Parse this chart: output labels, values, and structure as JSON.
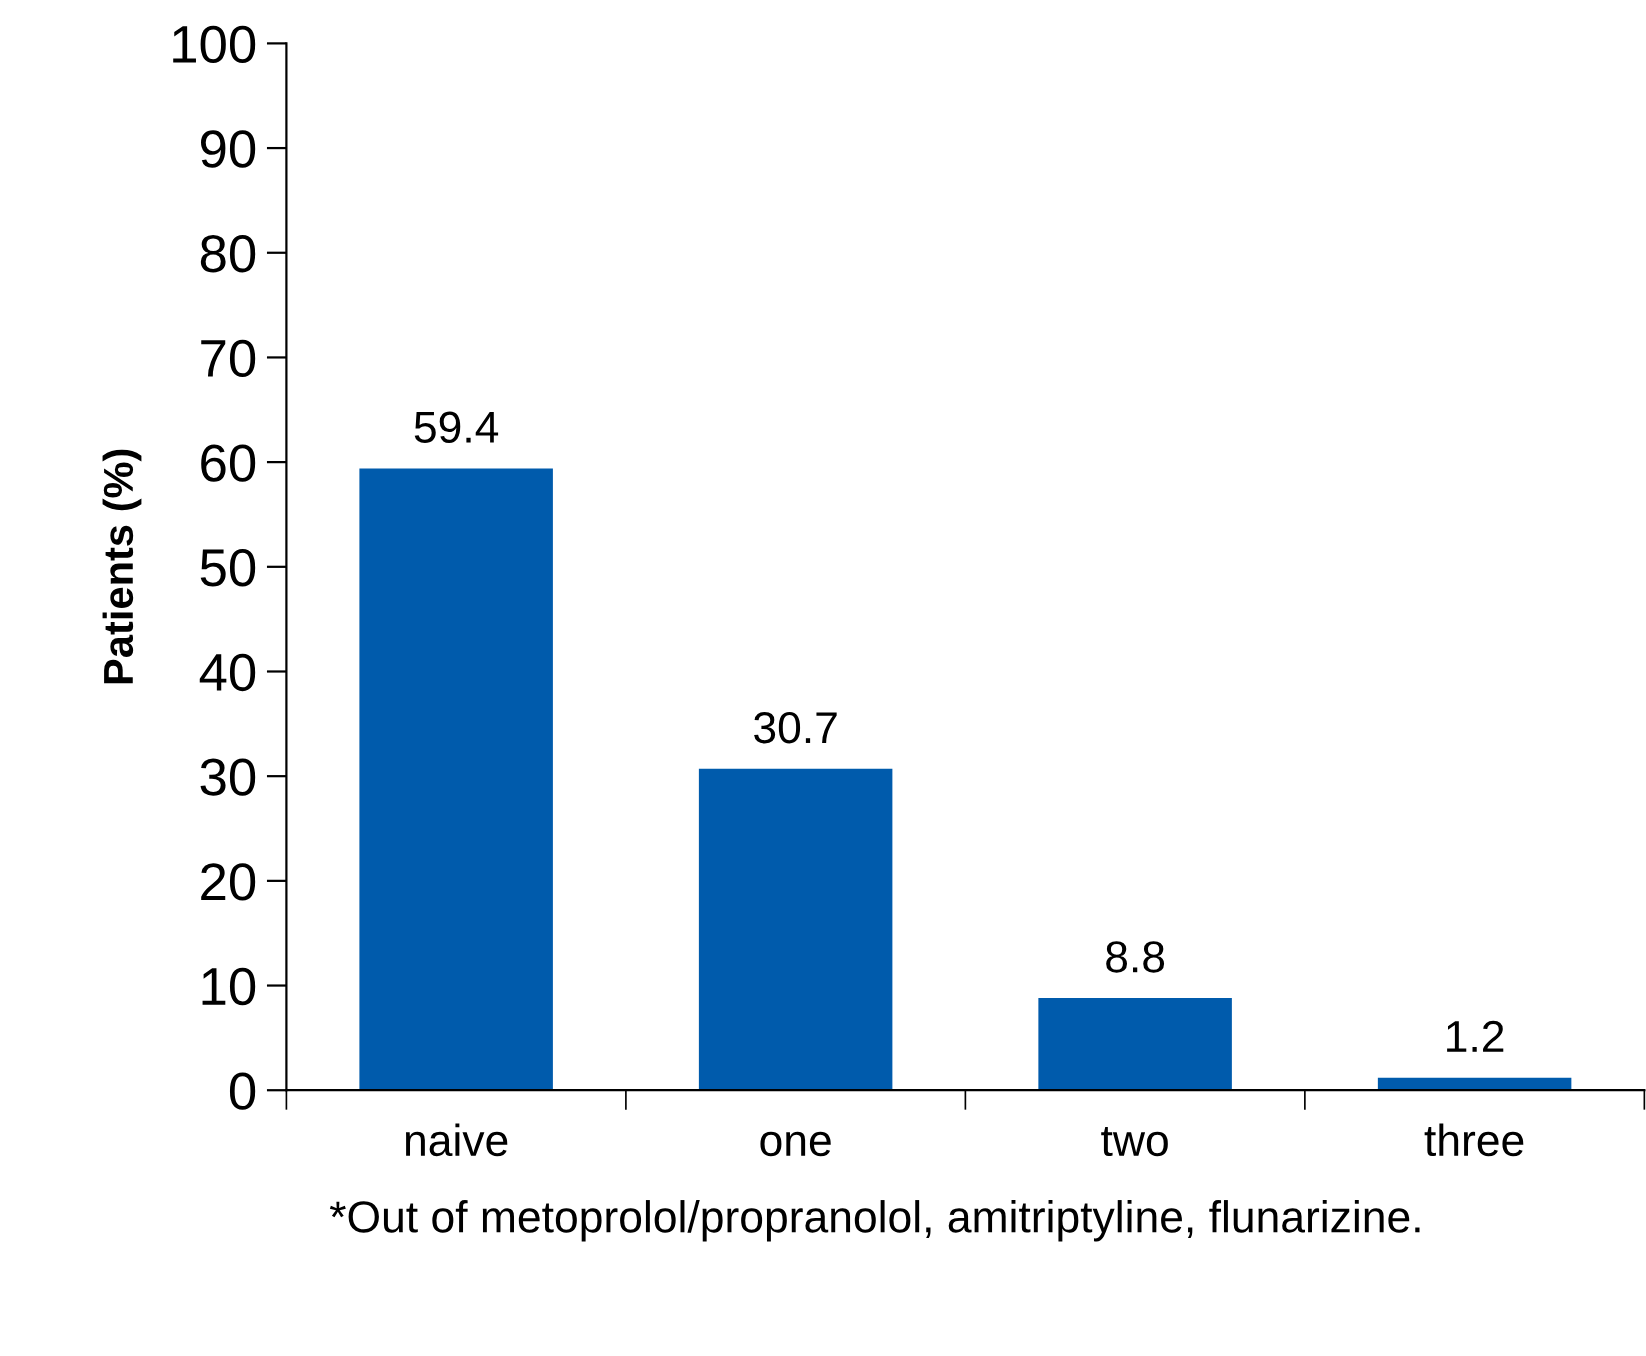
{
  "chart_data": {
    "type": "bar",
    "ylabel": "Patients (%)",
    "categories": [
      "naive",
      "one",
      "two",
      "three"
    ],
    "values": [
      59.4,
      30.7,
      8.8,
      1.2
    ],
    "color": "#005bac",
    "ylim": [
      0,
      100
    ],
    "yticks": [
      0,
      10,
      20,
      30,
      40,
      50,
      60,
      70,
      80,
      90,
      100
    ],
    "data_labels": true,
    "grid": false,
    "annotations": [
      "*Out of metoprolol/propranolol, amitriptyline, flunarizine."
    ]
  }
}
